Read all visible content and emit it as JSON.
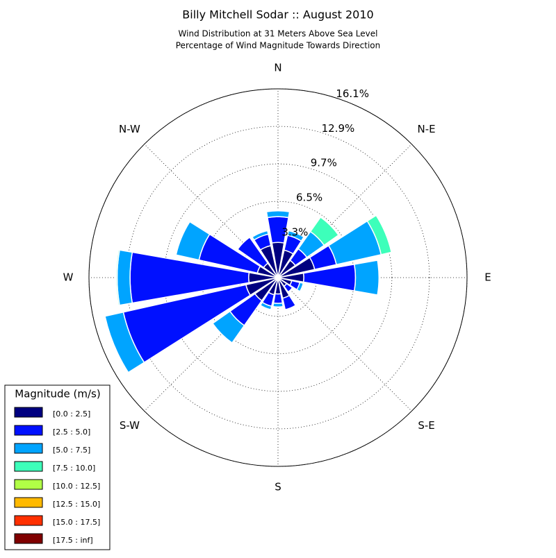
{
  "chart_data": {
    "type": "windrose",
    "title": "Billy Mitchell Sodar :: August 2010",
    "subtitles": [
      "Wind Distribution at 31 Meters Above Sea Level",
      "Percentage of Wind Magnitude Towards Direction"
    ],
    "categories": [
      "N",
      null,
      "N-E",
      null,
      "E",
      null,
      "S-E",
      null,
      "S",
      null,
      "S-W",
      null,
      "W",
      null,
      "N-W",
      null
    ],
    "rlim": [
      0,
      16.1
    ],
    "rticks": [
      {
        "value": 3.3,
        "label": "3.3%"
      },
      {
        "value": 6.5,
        "label": "6.5%"
      },
      {
        "value": 9.7,
        "label": "9.7%"
      },
      {
        "value": 12.9,
        "label": "12.9%"
      },
      {
        "value": 16.1,
        "label": "16.1%"
      }
    ],
    "grid": true,
    "legend_title": "Magnitude (m/s)",
    "legend_position": "lower left",
    "series": [
      {
        "name": "[0.0 : 2.5]",
        "color": "#000080",
        "values": [
          3.0,
          2.4,
          1.8,
          3.2,
          2.2,
          1.2,
          0.9,
          1.8,
          1.4,
          1.5,
          2.4,
          2.8,
          2.5,
          1.8,
          1.5,
          2.8
        ]
      },
      {
        "name": "[2.5 : 5.0]",
        "color": "#0010ff",
        "values": [
          2.2,
          1.3,
          1.2,
          1.9,
          4.4,
          0.7,
          0.6,
          1.0,
          0.8,
          1.0,
          2.6,
          10.7,
          10.1,
          5.1,
          2.7,
          1.0
        ]
      },
      {
        "name": "[5.0 : 7.5]",
        "color": "#00a4ff",
        "values": [
          0.5,
          0.4,
          1.8,
          3.9,
          2.0,
          0.3,
          0,
          0,
          0.3,
          0.3,
          1.8,
          1.6,
          1.1,
          2.0,
          0,
          0.3
        ]
      },
      {
        "name": "[7.5 : 10.0]",
        "color": "#3dffba",
        "values": [
          0,
          0,
          1.5,
          0.9,
          0,
          0,
          0,
          0,
          0,
          0,
          0,
          0,
          0.1,
          0,
          0,
          0
        ]
      },
      {
        "name": "[10.0 : 12.5]",
        "color": "#b1ff46",
        "values": [
          0,
          0,
          0,
          0,
          0,
          0,
          0,
          0,
          0,
          0,
          0,
          0,
          0,
          0,
          0,
          0
        ]
      },
      {
        "name": "[12.5 : 15.0]",
        "color": "#ffb900",
        "values": [
          0,
          0,
          0,
          0,
          0,
          0,
          0,
          0,
          0,
          0,
          0,
          0,
          0,
          0,
          0,
          0
        ]
      },
      {
        "name": "[15.0 : 17.5]",
        "color": "#ff3000",
        "values": [
          0,
          0,
          0,
          0,
          0,
          0,
          0,
          0,
          0,
          0,
          0,
          0,
          0,
          0,
          0,
          0
        ]
      },
      {
        "name": "[17.5 : inf]",
        "color": "#800000",
        "values": [
          0,
          0,
          0,
          0,
          0,
          0,
          0,
          0,
          0,
          0,
          0,
          0,
          0,
          0,
          0,
          0
        ]
      }
    ]
  }
}
